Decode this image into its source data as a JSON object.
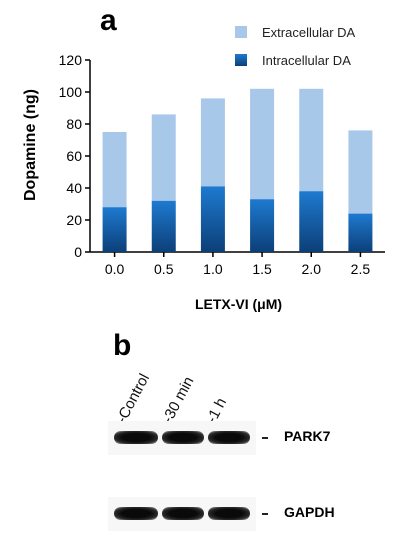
{
  "panel_a": {
    "letter": "a"
  },
  "panel_b": {
    "letter": "b",
    "lanes": [
      "-Control",
      "-30 min",
      "-1 h"
    ],
    "rows": [
      {
        "protein": "PARK7",
        "dash": "-"
      },
      {
        "protein": "GAPDH",
        "dash": "-"
      }
    ]
  },
  "colors": {
    "extracellular": "#a8c8ea",
    "intracellular": "#1a6fc0",
    "intracellular_dark": "#0c3f78"
  },
  "chart_data": {
    "type": "bar",
    "stacked": true,
    "title": "",
    "xlabel": "LETX-VI (μM)",
    "ylabel": "Dopamine (ng)",
    "categories": [
      "0.0",
      "0.5",
      "1.0",
      "1.5",
      "2.0",
      "2.5"
    ],
    "ylim": [
      0,
      120
    ],
    "yticks": [
      0,
      20,
      40,
      60,
      80,
      100,
      120
    ],
    "legend_position": "top-right",
    "series": [
      {
        "name": "Intracellular DA",
        "values": [
          28,
          32,
          41,
          33,
          38,
          24
        ]
      },
      {
        "name": "Extracellular DA",
        "values": [
          47,
          54,
          55,
          69,
          64,
          52
        ]
      }
    ]
  }
}
